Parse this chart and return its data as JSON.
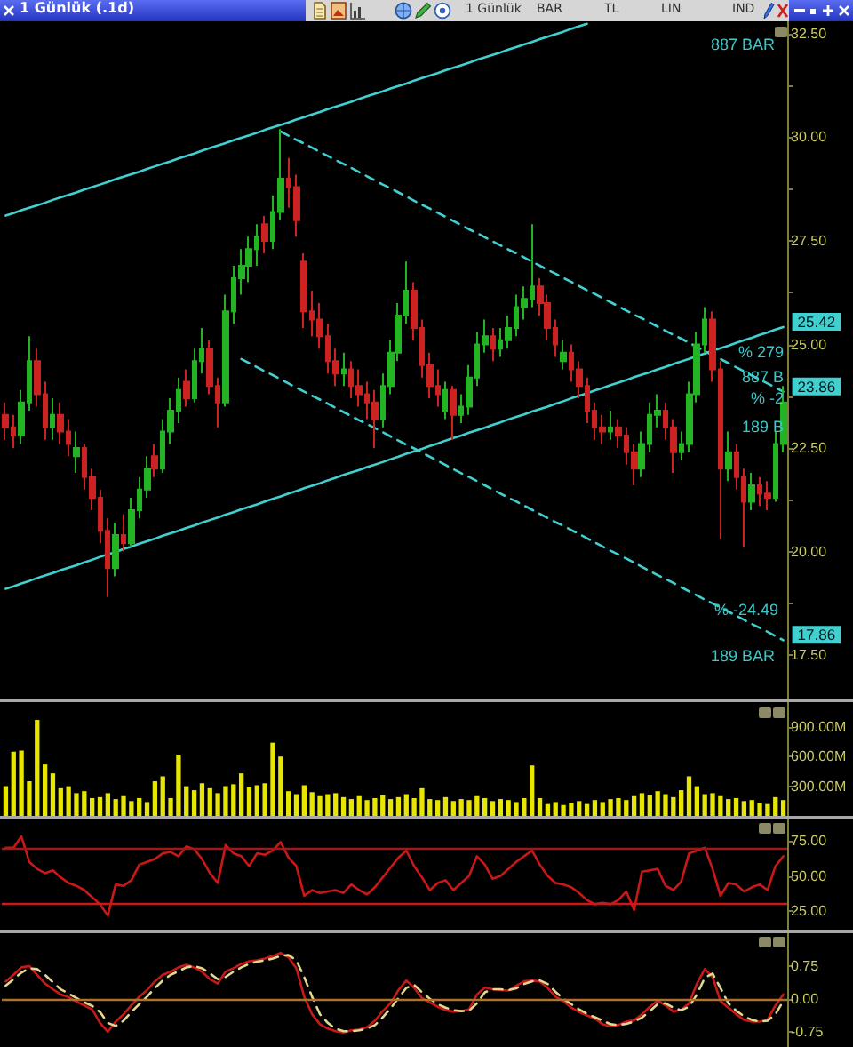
{
  "chart_data": [
    {
      "type": "candlestick",
      "title": "1 Günlük (.1d)",
      "categories": [
        null,
        null,
        null,
        null,
        null,
        null,
        null,
        null,
        null,
        null,
        null,
        null,
        null,
        null,
        null,
        null,
        null,
        null,
        null,
        null,
        null,
        null,
        null,
        null,
        null,
        null,
        null,
        null,
        null,
        null,
        null,
        null,
        null,
        null,
        null,
        null,
        null,
        null,
        null,
        null,
        null,
        null,
        null,
        null,
        null,
        null,
        null,
        null,
        null,
        null,
        null,
        null,
        null,
        null,
        null,
        null,
        null,
        null,
        null,
        null,
        null,
        null,
        null,
        null,
        null,
        null,
        null,
        null,
        null,
        null,
        null,
        null,
        null,
        null,
        null,
        null,
        null,
        null,
        null,
        null,
        null,
        null,
        null,
        null,
        null,
        null,
        null,
        null,
        null,
        null,
        null,
        null,
        null,
        null,
        null,
        null,
        null,
        null,
        null,
        null
      ],
      "ohlc": [
        [
          23.3,
          23.6,
          22.7,
          23.0
        ],
        [
          23.0,
          23.3,
          22.5,
          22.8
        ],
        [
          22.8,
          23.9,
          22.6,
          23.6
        ],
        [
          23.6,
          25.2,
          23.4,
          24.6
        ],
        [
          24.6,
          24.9,
          23.5,
          23.8
        ],
        [
          23.8,
          24.1,
          22.7,
          23.0
        ],
        [
          23.0,
          23.7,
          22.7,
          23.3
        ],
        [
          23.3,
          23.6,
          22.6,
          22.9
        ],
        [
          22.9,
          23.2,
          22.3,
          22.6
        ],
        [
          22.3,
          22.9,
          21.9,
          22.5
        ],
        [
          22.5,
          22.6,
          21.5,
          21.8
        ],
        [
          21.8,
          22.0,
          21.0,
          21.3
        ],
        [
          21.3,
          21.5,
          20.2,
          20.5
        ],
        [
          20.5,
          20.8,
          18.9,
          19.6
        ],
        [
          19.6,
          20.7,
          19.4,
          20.4
        ],
        [
          20.4,
          20.9,
          20.0,
          20.2
        ],
        [
          20.2,
          21.3,
          20.1,
          21.0
        ],
        [
          21.0,
          21.8,
          20.8,
          21.5
        ],
        [
          21.5,
          22.3,
          21.3,
          22.0
        ],
        [
          22.3,
          22.6,
          21.8,
          22.0
        ],
        [
          22.0,
          23.2,
          21.9,
          22.9
        ],
        [
          22.9,
          23.7,
          22.6,
          23.4
        ],
        [
          23.4,
          24.2,
          23.1,
          23.9
        ],
        [
          24.1,
          24.4,
          23.5,
          23.7
        ],
        [
          23.7,
          24.9,
          23.6,
          24.6
        ],
        [
          24.6,
          25.4,
          24.3,
          24.9
        ],
        [
          24.9,
          25.1,
          23.8,
          24.0
        ],
        [
          24.0,
          24.2,
          23.0,
          23.6
        ],
        [
          23.6,
          26.2,
          23.5,
          25.8
        ],
        [
          25.8,
          26.9,
          25.5,
          26.6
        ],
        [
          26.6,
          27.3,
          26.2,
          26.9
        ],
        [
          26.9,
          27.6,
          26.5,
          27.3
        ],
        [
          27.3,
          27.9,
          26.9,
          27.6
        ],
        [
          27.9,
          28.1,
          27.2,
          27.5
        ],
        [
          27.5,
          28.6,
          27.3,
          28.2
        ],
        [
          28.2,
          30.2,
          28.0,
          29.0
        ],
        [
          29.0,
          29.5,
          28.3,
          28.8
        ],
        [
          28.8,
          29.1,
          27.6,
          28.0
        ],
        [
          27.0,
          27.2,
          25.4,
          25.8
        ],
        [
          25.8,
          26.3,
          25.2,
          25.6
        ],
        [
          25.6,
          26.0,
          24.9,
          25.2
        ],
        [
          25.2,
          25.5,
          24.3,
          24.6
        ],
        [
          24.6,
          24.9,
          24.0,
          24.3
        ],
        [
          24.3,
          24.8,
          24.0,
          24.4
        ],
        [
          24.4,
          24.6,
          23.7,
          24.0
        ],
        [
          24.0,
          24.4,
          23.5,
          23.8
        ],
        [
          23.8,
          24.1,
          23.2,
          23.6
        ],
        [
          23.6,
          23.9,
          22.5,
          23.2
        ],
        [
          23.2,
          24.3,
          23.0,
          24.0
        ],
        [
          24.0,
          25.1,
          23.8,
          24.8
        ],
        [
          24.8,
          26.0,
          24.6,
          25.7
        ],
        [
          25.7,
          27.0,
          25.5,
          26.3
        ],
        [
          26.3,
          26.5,
          25.1,
          25.4
        ],
        [
          25.4,
          25.6,
          24.2,
          24.5
        ],
        [
          24.5,
          24.8,
          23.7,
          24.0
        ],
        [
          24.0,
          24.4,
          23.5,
          23.8
        ],
        [
          23.4,
          24.1,
          23.2,
          23.9
        ],
        [
          23.9,
          24.0,
          22.7,
          23.3
        ],
        [
          23.3,
          23.8,
          23.1,
          23.5
        ],
        [
          23.5,
          24.5,
          23.3,
          24.2
        ],
        [
          24.2,
          25.3,
          24.0,
          25.0
        ],
        [
          25.0,
          25.6,
          24.8,
          25.2
        ],
        [
          25.2,
          25.4,
          24.6,
          24.9
        ],
        [
          24.9,
          25.4,
          24.7,
          25.1
        ],
        [
          25.1,
          25.7,
          24.9,
          25.4
        ],
        [
          25.4,
          26.2,
          25.2,
          25.9
        ],
        [
          25.9,
          26.4,
          25.6,
          26.1
        ],
        [
          26.1,
          27.9,
          25.9,
          26.4
        ],
        [
          26.4,
          26.6,
          25.7,
          26.0
        ],
        [
          26.0,
          26.2,
          25.1,
          25.4
        ],
        [
          25.4,
          25.6,
          24.7,
          25.0
        ],
        [
          24.6,
          25.1,
          24.4,
          24.8
        ],
        [
          24.8,
          25.0,
          24.1,
          24.4
        ],
        [
          24.4,
          24.6,
          23.7,
          24.0
        ],
        [
          24.0,
          24.2,
          23.1,
          23.4
        ],
        [
          23.4,
          23.6,
          22.7,
          23.0
        ],
        [
          23.0,
          23.3,
          22.6,
          22.9
        ],
        [
          22.9,
          23.4,
          22.7,
          23.0
        ],
        [
          23.0,
          23.2,
          22.5,
          22.8
        ],
        [
          22.8,
          23.0,
          22.1,
          22.4
        ],
        [
          22.4,
          22.6,
          21.6,
          22.0
        ],
        [
          22.0,
          22.9,
          21.8,
          22.6
        ],
        [
          22.6,
          23.6,
          22.4,
          23.3
        ],
        [
          23.3,
          23.8,
          23.0,
          23.4
        ],
        [
          23.4,
          23.6,
          22.7,
          23.0
        ],
        [
          23.0,
          23.2,
          21.9,
          22.4
        ],
        [
          22.4,
          22.9,
          22.2,
          22.6
        ],
        [
          22.6,
          24.1,
          22.4,
          23.8
        ],
        [
          23.8,
          25.3,
          23.6,
          25.0
        ],
        [
          25.0,
          25.9,
          24.8,
          25.6
        ],
        [
          25.6,
          25.8,
          24.1,
          24.4
        ],
        [
          24.4,
          24.6,
          20.3,
          22.0
        ],
        [
          22.0,
          22.9,
          21.7,
          22.4
        ],
        [
          22.4,
          22.6,
          21.5,
          21.8
        ],
        [
          21.8,
          22.0,
          20.1,
          21.2
        ],
        [
          21.2,
          21.9,
          21.0,
          21.6
        ],
        [
          21.6,
          21.8,
          21.1,
          21.4
        ],
        [
          21.4,
          21.7,
          21.0,
          21.3
        ],
        [
          21.3,
          22.9,
          21.2,
          22.6
        ],
        [
          22.6,
          24.0,
          22.4,
          23.6
        ]
      ],
      "colors": [
        "#cc2222",
        "#cc2222",
        "#22b422",
        "#22b422",
        "#cc2222",
        "#cc2222",
        "#22b422",
        "#cc2222",
        "#cc2222",
        "#22b422",
        "#cc2222",
        "#cc2222",
        "#cc2222",
        "#cc2222",
        "#22b422",
        "#cc2222",
        "#22b422",
        "#22b422",
        "#22b422",
        "#cc2222",
        "#22b422",
        "#22b422",
        "#22b422",
        "#cc2222",
        "#22b422",
        "#22b422",
        "#cc2222",
        "#cc2222",
        "#22b422",
        "#22b422",
        "#22b422",
        "#22b422",
        "#22b422",
        "#cc2222",
        "#22b422",
        "#22b422",
        "#cc2222",
        "#cc2222",
        "#cc2222",
        "#cc2222",
        "#cc2222",
        "#cc2222",
        "#cc2222",
        "#22b422",
        "#cc2222",
        "#cc2222",
        "#cc2222",
        "#cc2222",
        "#22b422",
        "#22b422",
        "#22b422",
        "#22b422",
        "#cc2222",
        "#cc2222",
        "#cc2222",
        "#cc2222",
        "#22b422",
        "#cc2222",
        "#22b422",
        "#22b422",
        "#22b422",
        "#22b422",
        "#cc2222",
        "#22b422",
        "#22b422",
        "#22b422",
        "#22b422",
        "#22b422",
        "#cc2222",
        "#cc2222",
        "#cc2222",
        "#22b422",
        "#cc2222",
        "#cc2222",
        "#cc2222",
        "#cc2222",
        "#cc2222",
        "#22b422",
        "#cc2222",
        "#cc2222",
        "#cc2222",
        "#22b422",
        "#22b422",
        "#22b422",
        "#cc2222",
        "#cc2222",
        "#22b422",
        "#22b422",
        "#22b422",
        "#22b422",
        "#cc2222",
        "#cc2222",
        "#22b422",
        "#cc2222",
        "#cc2222",
        "#22b422",
        "#cc2222",
        "#cc2222",
        "#22b422",
        "#22b422"
      ],
      "series": [
        {
          "type": "line",
          "color": "#40d0d0",
          "line_style": "solid",
          "values": [
            28.11,
            28.17,
            28.24,
            28.3,
            28.36,
            28.42,
            28.49,
            28.55,
            28.61,
            28.67,
            28.74,
            28.8,
            28.86,
            28.92,
            28.99,
            29.05,
            29.11,
            29.17,
            29.24,
            29.3,
            29.36,
            29.42,
            29.49,
            29.55,
            29.61,
            29.68,
            29.74,
            29.8,
            29.86,
            29.93,
            29.99,
            30.05,
            30.11,
            30.18,
            30.24,
            30.3,
            30.36,
            30.43,
            30.49,
            30.55,
            30.61,
            30.68,
            30.74,
            30.8,
            30.86,
            30.93,
            30.99,
            31.05,
            31.11,
            31.18,
            31.24,
            31.3,
            31.37,
            31.43,
            31.49,
            31.55,
            31.62,
            31.68,
            31.74,
            31.8,
            31.87,
            31.93,
            31.99,
            32.05,
            32.12,
            32.18,
            32.24,
            32.3,
            32.37,
            32.43,
            32.49,
            32.55,
            32.62,
            32.68,
            32.74,
            null,
            null,
            null,
            null,
            null,
            null,
            null,
            null,
            null,
            null,
            null,
            null,
            null,
            null,
            null,
            null,
            null,
            null,
            null,
            null,
            null,
            null,
            null,
            null,
            null
          ]
        },
        {
          "type": "line",
          "color": "#40d0d0",
          "line_style": "solid",
          "values": [
            19.1,
            19.16,
            19.23,
            19.29,
            19.36,
            19.42,
            19.48,
            19.55,
            19.61,
            19.67,
            19.74,
            19.8,
            19.87,
            19.93,
            19.99,
            20.06,
            20.12,
            20.19,
            20.25,
            20.31,
            20.38,
            20.44,
            20.5,
            20.57,
            20.63,
            20.7,
            20.76,
            20.82,
            20.89,
            20.95,
            21.02,
            21.08,
            21.14,
            21.21,
            21.27,
            21.33,
            21.4,
            21.46,
            21.53,
            21.59,
            21.65,
            21.72,
            21.78,
            21.85,
            21.91,
            21.97,
            22.04,
            22.1,
            22.16,
            22.23,
            22.29,
            22.36,
            22.42,
            22.48,
            22.55,
            22.61,
            22.68,
            22.74,
            22.8,
            22.87,
            22.93,
            22.99,
            23.06,
            23.12,
            23.19,
            23.25,
            23.31,
            23.38,
            23.44,
            23.5,
            23.57,
            23.63,
            23.7,
            23.76,
            23.82,
            23.89,
            23.95,
            24.02,
            24.08,
            24.14,
            24.21,
            24.27,
            24.33,
            24.4,
            24.46,
            24.53,
            24.59,
            24.65,
            24.72,
            24.78,
            24.85,
            24.91,
            24.97,
            25.04,
            25.1,
            25.16,
            25.23,
            25.29,
            25.36,
            25.42
          ],
          "value_labels": [
            null,
            null,
            null,
            null,
            null,
            null,
            null,
            null,
            null,
            null,
            null,
            null,
            null,
            null,
            null,
            null,
            null,
            null,
            null,
            null,
            null,
            null,
            null,
            null,
            null,
            null,
            null,
            null,
            null,
            null,
            null,
            null,
            null,
            null,
            null,
            null,
            null,
            null,
            null,
            null,
            null,
            null,
            null,
            null,
            null,
            null,
            null,
            null,
            null,
            null,
            null,
            null,
            null,
            null,
            null,
            null,
            null,
            null,
            null,
            null,
            null,
            null,
            null,
            null,
            null,
            null,
            null,
            null,
            null,
            null,
            null,
            null,
            null,
            null,
            null,
            null,
            null,
            null,
            null,
            null,
            null,
            null,
            null,
            null,
            null,
            null,
            null,
            null,
            null,
            null,
            null,
            null,
            null,
            null,
            null,
            null,
            null,
            null,
            null,
            "25.42"
          ]
        },
        {
          "type": "line",
          "color": "#40d0d0",
          "line_style": "dashed",
          "values": [
            null,
            null,
            null,
            null,
            null,
            null,
            null,
            null,
            null,
            null,
            null,
            null,
            null,
            null,
            null,
            null,
            null,
            null,
            null,
            null,
            null,
            null,
            null,
            null,
            null,
            null,
            null,
            null,
            null,
            null,
            null,
            null,
            null,
            null,
            null,
            30.14,
            30.04,
            29.94,
            29.85,
            29.75,
            29.65,
            29.55,
            29.45,
            29.36,
            29.26,
            29.16,
            29.06,
            28.96,
            28.86,
            28.77,
            28.67,
            28.57,
            28.47,
            28.37,
            28.28,
            28.18,
            28.08,
            27.98,
            27.88,
            27.78,
            27.69,
            27.59,
            27.49,
            27.39,
            27.29,
            27.2,
            27.1,
            27.0,
            26.9,
            26.8,
            26.71,
            26.61,
            26.51,
            26.41,
            26.31,
            26.22,
            26.12,
            26.02,
            25.92,
            25.82,
            25.72,
            25.63,
            25.53,
            25.43,
            25.33,
            25.23,
            25.14,
            25.04,
            24.94,
            24.84,
            24.74,
            24.65,
            24.55,
            24.45,
            24.35,
            24.25,
            24.15,
            24.06,
            23.96,
            23.86
          ],
          "value_labels": [
            null,
            null,
            null,
            null,
            null,
            null,
            null,
            null,
            null,
            null,
            null,
            null,
            null,
            null,
            null,
            null,
            null,
            null,
            null,
            null,
            null,
            null,
            null,
            null,
            null,
            null,
            null,
            null,
            null,
            null,
            null,
            null,
            null,
            null,
            null,
            null,
            null,
            null,
            null,
            null,
            null,
            null,
            null,
            null,
            null,
            null,
            null,
            null,
            null,
            null,
            null,
            null,
            null,
            null,
            null,
            null,
            null,
            null,
            null,
            null,
            null,
            null,
            null,
            null,
            null,
            null,
            null,
            null,
            null,
            null,
            null,
            null,
            null,
            null,
            null,
            null,
            null,
            null,
            null,
            null,
            null,
            null,
            null,
            null,
            null,
            null,
            null,
            null,
            null,
            null,
            null,
            null,
            null,
            null,
            null,
            null,
            null,
            null,
            null,
            "23.86"
          ]
        },
        {
          "type": "line",
          "color": "#40d0d0",
          "line_style": "dashed",
          "values": [
            null,
            null,
            null,
            null,
            null,
            null,
            null,
            null,
            null,
            null,
            null,
            null,
            null,
            null,
            null,
            null,
            null,
            null,
            null,
            null,
            null,
            null,
            null,
            null,
            null,
            null,
            null,
            null,
            null,
            null,
            24.65,
            24.55,
            24.45,
            24.35,
            24.26,
            24.16,
            24.06,
            23.96,
            23.86,
            23.76,
            23.67,
            23.57,
            23.47,
            23.37,
            23.27,
            23.17,
            23.08,
            22.98,
            22.88,
            22.78,
            22.68,
            22.58,
            22.49,
            22.39,
            22.29,
            22.19,
            22.09,
            21.99,
            21.89,
            21.8,
            21.7,
            21.6,
            21.5,
            21.4,
            21.3,
            21.21,
            21.11,
            21.01,
            20.91,
            20.81,
            20.71,
            20.62,
            20.52,
            20.42,
            20.32,
            20.22,
            20.12,
            20.02,
            19.93,
            19.83,
            19.73,
            19.63,
            19.53,
            19.43,
            19.34,
            19.24,
            19.14,
            19.04,
            18.94,
            18.84,
            18.75,
            18.65,
            18.55,
            18.45,
            18.35,
            18.25,
            18.16,
            18.06,
            17.96,
            17.86
          ],
          "value_labels": [
            null,
            null,
            null,
            null,
            null,
            null,
            null,
            null,
            null,
            null,
            null,
            null,
            null,
            null,
            null,
            null,
            null,
            null,
            null,
            null,
            null,
            null,
            null,
            null,
            null,
            null,
            null,
            null,
            null,
            null,
            null,
            null,
            null,
            null,
            null,
            null,
            null,
            null,
            null,
            null,
            null,
            null,
            null,
            null,
            null,
            null,
            null,
            null,
            null,
            null,
            null,
            null,
            null,
            null,
            null,
            null,
            null,
            null,
            null,
            null,
            null,
            null,
            null,
            null,
            null,
            null,
            null,
            null,
            null,
            null,
            null,
            null,
            null,
            null,
            null,
            null,
            null,
            null,
            null,
            null,
            null,
            null,
            null,
            null,
            null,
            null,
            null,
            null,
            null,
            null,
            null,
            null,
            null,
            null,
            null,
            null,
            null,
            null,
            null,
            "17.86"
          ]
        }
      ],
      "marker": "none",
      "ylim": [
        16.45,
        32.8
      ],
      "yticks": [
        {
          "value": 17.5,
          "label": "17.50"
        },
        {
          "value": 18.75,
          "label": null
        },
        {
          "value": 20,
          "label": "20.00"
        },
        {
          "value": 21.25,
          "label": null
        },
        {
          "value": 22.5,
          "label": "22.50"
        },
        {
          "value": 23.75,
          "label": null
        },
        {
          "value": 25,
          "label": "25.00"
        },
        {
          "value": 26.25,
          "label": null
        },
        {
          "value": 27.5,
          "label": "27.50"
        },
        {
          "value": 28.75,
          "label": null
        },
        {
          "value": 30,
          "label": "30.00"
        },
        {
          "value": 31.25,
          "label": null
        },
        {
          "value": 32.5,
          "label": "32.50"
        }
      ],
      "tick_labels": "y",
      "annotations": [
        "887 BAR",
        "% 279",
        "887 B",
        "% -2",
        "189 B",
        "% -24.49",
        "189 BAR",
        "1 Günlük",
        "BAR",
        "TL",
        "LIN",
        "IND"
      ]
    },
    {
      "type": "bar",
      "categories": [
        null,
        null,
        null,
        null,
        null,
        null,
        null,
        null,
        null,
        null,
        null,
        null,
        null,
        null,
        null,
        null,
        null,
        null,
        null,
        null,
        null,
        null,
        null,
        null,
        null,
        null,
        null,
        null,
        null,
        null,
        null,
        null,
        null,
        null,
        null,
        null,
        null,
        null,
        null,
        null,
        null,
        null,
        null,
        null,
        null,
        null,
        null,
        null,
        null,
        null,
        null,
        null,
        null,
        null,
        null,
        null,
        null,
        null,
        null,
        null,
        null,
        null,
        null,
        null,
        null,
        null,
        null,
        null,
        null,
        null,
        null,
        null,
        null,
        null,
        null,
        null,
        null,
        null,
        null,
        null,
        null,
        null,
        null,
        null,
        null,
        null,
        null,
        null,
        null,
        null,
        null,
        null,
        null,
        null,
        null,
        null,
        null,
        null,
        null,
        null
      ],
      "values": [
        300,
        650,
        660,
        350,
        970,
        520,
        430,
        280,
        300,
        230,
        250,
        180,
        190,
        230,
        170,
        200,
        150,
        180,
        140,
        350,
        400,
        180,
        620,
        300,
        260,
        330,
        280,
        230,
        300,
        320,
        430,
        290,
        310,
        330,
        740,
        600,
        250,
        220,
        310,
        240,
        200,
        220,
        230,
        190,
        170,
        200,
        160,
        180,
        210,
        170,
        190,
        220,
        180,
        280,
        170,
        160,
        190,
        150,
        170,
        160,
        200,
        180,
        150,
        170,
        160,
        140,
        180,
        510,
        180,
        120,
        140,
        110,
        130,
        150,
        120,
        160,
        140,
        170,
        180,
        160,
        200,
        230,
        210,
        250,
        220,
        190,
        260,
        400,
        300,
        220,
        230,
        200,
        170,
        180,
        150,
        160,
        130,
        120,
        190,
        160
      ],
      "color": "#e6e600",
      "ylim": [
        0,
        1150
      ],
      "yticks": [
        {
          "value": 300,
          "label": "300.00M"
        },
        {
          "value": 600,
          "label": "600.00M"
        },
        {
          "value": 900,
          "label": "900.00M"
        }
      ],
      "tick_labels": "y"
    },
    {
      "type": "line",
      "categories": [
        null,
        null,
        null,
        null,
        null,
        null,
        null,
        null,
        null,
        null,
        null,
        null,
        null,
        null,
        null,
        null,
        null,
        null,
        null,
        null,
        null,
        null,
        null,
        null,
        null,
        null,
        null,
        null,
        null,
        null,
        null,
        null,
        null,
        null,
        null,
        null,
        null,
        null,
        null,
        null,
        null,
        null,
        null,
        null,
        null,
        null,
        null,
        null,
        null,
        null,
        null,
        null,
        null,
        null,
        null,
        null,
        null,
        null,
        null,
        null,
        null,
        null,
        null,
        null,
        null,
        null,
        null,
        null,
        null,
        null,
        null,
        null,
        null,
        null,
        null,
        null,
        null,
        null,
        null,
        null,
        null,
        null,
        null,
        null,
        null,
        null,
        null,
        null,
        null,
        null,
        null,
        null,
        null,
        null,
        null,
        null,
        null,
        null,
        null,
        null
      ],
      "series": [
        {
          "color": "#c81818",
          "values": [
            70,
            70,
            78,
            60,
            55,
            52,
            54,
            49,
            45,
            43,
            40,
            35,
            30,
            22,
            44,
            43,
            47,
            58,
            60,
            62,
            66,
            67,
            64,
            71,
            69,
            62,
            52,
            45,
            72,
            66,
            64,
            57,
            66,
            65,
            68,
            74,
            63,
            57,
            36,
            40,
            38,
            39,
            40,
            38,
            44,
            40,
            37,
            42,
            49,
            56,
            63,
            68,
            57,
            49,
            40,
            45,
            47,
            40,
            45,
            50,
            64,
            58,
            48,
            50,
            55,
            60,
            64,
            68,
            58,
            50,
            45,
            44,
            42,
            38,
            33,
            30,
            31,
            30,
            33,
            39,
            26,
            53,
            54,
            55,
            43,
            40,
            46,
            66,
            68,
            70,
            55,
            36,
            45,
            44,
            39,
            42,
            44,
            40,
            57,
            64
          ]
        }
      ],
      "marker": "none",
      "ylim": [
        12,
        90
      ],
      "yticks": [
        {
          "value": 25,
          "label": "25.00"
        },
        {
          "value": 50,
          "label": "50.00"
        },
        {
          "value": 75,
          "label": "75.00"
        }
      ],
      "ref_lines": [
        {
          "axis": "y",
          "value": 70,
          "color": "#a01818"
        },
        {
          "axis": "y",
          "value": 30,
          "color": "#d01818"
        }
      ],
      "tick_labels": "y"
    },
    {
      "type": "line",
      "categories": [
        null,
        null,
        null,
        null,
        null,
        null,
        null,
        null,
        null,
        null,
        null,
        null,
        null,
        null,
        null,
        null,
        null,
        null,
        null,
        null,
        null,
        null,
        null,
        null,
        null,
        null,
        null,
        null,
        null,
        null,
        null,
        null,
        null,
        null,
        null,
        null,
        null,
        null,
        null,
        null,
        null,
        null,
        null,
        null,
        null,
        null,
        null,
        null,
        null,
        null,
        null,
        null,
        null,
        null,
        null,
        null,
        null,
        null,
        null,
        null,
        null,
        null,
        null,
        null,
        null,
        null,
        null,
        null,
        null,
        null,
        null,
        null,
        null,
        null,
        null,
        null,
        null,
        null,
        null,
        null,
        null,
        null,
        null,
        null,
        null,
        null,
        null,
        null,
        null,
        null,
        null,
        null,
        null,
        null,
        null,
        null,
        null,
        null,
        null,
        null
      ],
      "series": [
        {
          "color": "#c81818",
          "values": [
            0.4,
            0.55,
            0.72,
            0.75,
            0.55,
            0.35,
            0.22,
            0.1,
            0.04,
            -0.06,
            -0.15,
            -0.24,
            -0.55,
            -0.75,
            -0.52,
            -0.35,
            -0.15,
            0.05,
            0.2,
            0.4,
            0.55,
            0.62,
            0.72,
            0.78,
            0.72,
            0.62,
            0.45,
            0.35,
            0.62,
            0.7,
            0.8,
            0.86,
            0.88,
            0.92,
            0.98,
            1.05,
            0.95,
            0.7,
            0.05,
            -0.35,
            -0.58,
            -0.68,
            -0.74,
            -0.77,
            -0.72,
            -0.7,
            -0.65,
            -0.5,
            -0.28,
            -0.1,
            0.2,
            0.42,
            0.25,
            0.02,
            -0.08,
            -0.18,
            -0.26,
            -0.29,
            -0.28,
            -0.24,
            0.1,
            0.26,
            0.22,
            0.2,
            0.19,
            0.3,
            0.4,
            0.42,
            0.4,
            0.25,
            0.05,
            -0.05,
            -0.2,
            -0.3,
            -0.38,
            -0.45,
            -0.58,
            -0.63,
            -0.6,
            -0.52,
            -0.49,
            -0.35,
            -0.18,
            -0.04,
            -0.15,
            -0.29,
            -0.25,
            -0.1,
            0.35,
            0.68,
            0.5,
            -0.05,
            -0.2,
            -0.35,
            -0.48,
            -0.52,
            -0.52,
            -0.48,
            -0.15,
            0.1
          ]
        },
        {
          "color": "#e0d890",
          "line_style": "dashed",
          "values": [
            0.3,
            0.45,
            0.6,
            0.7,
            0.68,
            0.55,
            0.38,
            0.22,
            0.12,
            0.02,
            -0.08,
            -0.16,
            -0.3,
            -0.55,
            -0.62,
            -0.5,
            -0.3,
            -0.12,
            0.05,
            0.25,
            0.42,
            0.55,
            0.63,
            0.72,
            0.75,
            0.7,
            0.58,
            0.45,
            0.5,
            0.62,
            0.72,
            0.8,
            0.85,
            0.88,
            0.92,
            0.98,
            1.0,
            0.88,
            0.5,
            0.05,
            -0.35,
            -0.55,
            -0.68,
            -0.74,
            -0.74,
            -0.72,
            -0.68,
            -0.6,
            -0.42,
            -0.22,
            0.02,
            0.25,
            0.32,
            0.15,
            0.0,
            -0.12,
            -0.2,
            -0.26,
            -0.28,
            -0.27,
            -0.1,
            0.15,
            0.22,
            0.22,
            0.2,
            0.24,
            0.34,
            0.4,
            0.42,
            0.34,
            0.16,
            0.0,
            -0.12,
            -0.24,
            -0.34,
            -0.42,
            -0.5,
            -0.58,
            -0.6,
            -0.57,
            -0.52,
            -0.43,
            -0.28,
            -0.12,
            -0.1,
            -0.2,
            -0.26,
            -0.18,
            0.1,
            0.48,
            0.58,
            0.25,
            -0.1,
            -0.27,
            -0.4,
            -0.48,
            -0.52,
            -0.5,
            -0.35,
            -0.05
          ]
        }
      ],
      "marker": "none",
      "ylim": [
        -1.1,
        1.5
      ],
      "yticks": [
        -0.75,
        {
          "value": 0,
          "label": "0.00"
        },
        0.75
      ],
      "ref_lines": [
        {
          "axis": "y",
          "value": 0,
          "color": "#b07030"
        }
      ],
      "tick_labels": "y"
    }
  ]
}
